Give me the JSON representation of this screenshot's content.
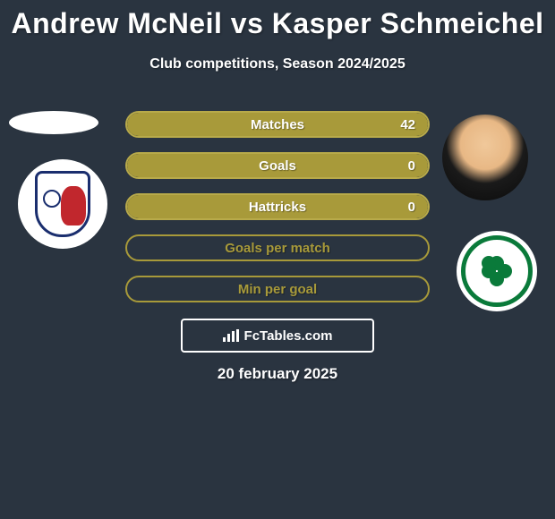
{
  "title": "Andrew McNeil vs Kasper Schmeichel",
  "subtitle": "Club competitions, Season 2024/2025",
  "date": "20 february 2025",
  "watermark": "FcTables.com",
  "colors": {
    "background": "#2a3440",
    "filled_bar": "#a89a3a",
    "filled_border": "#b8aa4a",
    "empty_border": "#a89a3a",
    "text": "#ffffff"
  },
  "stats": [
    {
      "label": "Matches",
      "value": "42",
      "fill_pct": 100,
      "filled": true
    },
    {
      "label": "Goals",
      "value": "0",
      "fill_pct": 100,
      "filled": true
    },
    {
      "label": "Hattricks",
      "value": "0",
      "fill_pct": 100,
      "filled": true
    },
    {
      "label": "Goals per match",
      "value": "",
      "fill_pct": 0,
      "filled": false
    },
    {
      "label": "Min per goal",
      "value": "",
      "fill_pct": 0,
      "filled": false
    }
  ],
  "player_left": {
    "name": "Andrew McNeil",
    "club": "Raith Rovers"
  },
  "player_right": {
    "name": "Kasper Schmeichel",
    "club": "Celtic"
  }
}
